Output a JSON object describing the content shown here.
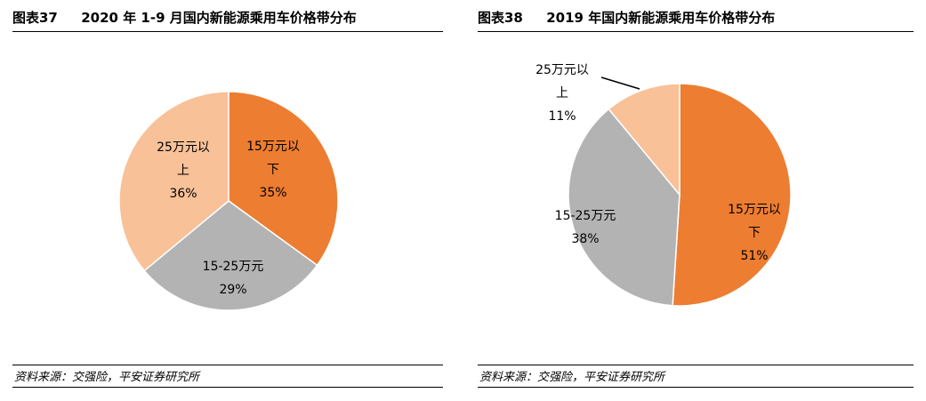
{
  "colors": {
    "below15": "#ED7D31",
    "mid": "#B3B3B3",
    "above25": "#F8C198"
  },
  "chart_data": [
    {
      "type": "pie",
      "figure_label": "图表37",
      "title": "2020 年 1-9 月国内新能源乘用车价格带分布",
      "source": "资料来源：交强险，平安证券研究所",
      "slices": [
        {
          "label": "15万元以下",
          "label_lines": [
            "15万元以",
            "下"
          ],
          "value": 35,
          "pct": "35%",
          "color": "#ED7D31"
        },
        {
          "label": "15-25万元",
          "label_lines": [
            "15-25万元"
          ],
          "value": 29,
          "pct": "29%",
          "color": "#B3B3B3"
        },
        {
          "label": "25万元以上",
          "label_lines": [
            "25万元以",
            "上"
          ],
          "value": 36,
          "pct": "36%",
          "color": "#F8C198"
        }
      ]
    },
    {
      "type": "pie",
      "figure_label": "图表38",
      "title": "2019 年国内新能源乘用车价格带分布",
      "source": "资料来源：交强险，平安证券研究所",
      "slices": [
        {
          "label": "15万元以下",
          "label_lines": [
            "15万元以",
            "下"
          ],
          "value": 51,
          "pct": "51%",
          "color": "#ED7D31"
        },
        {
          "label": "15-25万元",
          "label_lines": [
            "15-25万元"
          ],
          "value": 38,
          "pct": "38%",
          "color": "#B3B3B3"
        },
        {
          "label": "25万元以上",
          "label_lines": [
            "25万元以",
            "上"
          ],
          "value": 11,
          "pct": "11%",
          "color": "#F8C198"
        }
      ]
    }
  ]
}
